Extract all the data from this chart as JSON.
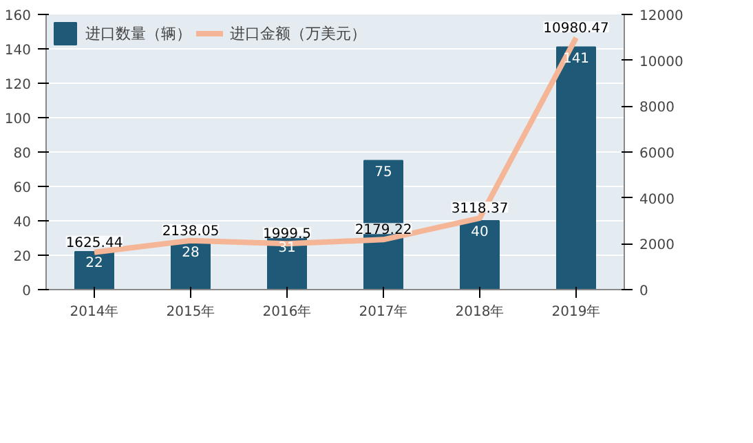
{
  "chart_data": {
    "type": "bar",
    "categories": [
      "2014年",
      "2015年",
      "2016年",
      "2017年",
      "2018年",
      "2019年"
    ],
    "series": [
      {
        "name": "进口数量（辆）",
        "color": "#1e5a78",
        "values": [
          22,
          28,
          31,
          75,
          40,
          141
        ]
      },
      {
        "name": "进口金额（万美元）",
        "type": "line",
        "axis": "y2",
        "color": "#f5b697",
        "values": [
          1625.44,
          2138.05,
          1999.5,
          2179.22,
          3118.37,
          10980.47
        ]
      }
    ],
    "ylim": [
      0,
      160
    ],
    "yticks": [
      0,
      20,
      40,
      60,
      80,
      100,
      120,
      140,
      160
    ],
    "y2lim": [
      0,
      12000
    ],
    "y2ticks": [
      0,
      2000,
      4000,
      6000,
      8000,
      10000,
      12000
    ],
    "grid": "y",
    "legend": "top left",
    "data_labels": true,
    "marker": "none",
    "line_style": "solid"
  }
}
